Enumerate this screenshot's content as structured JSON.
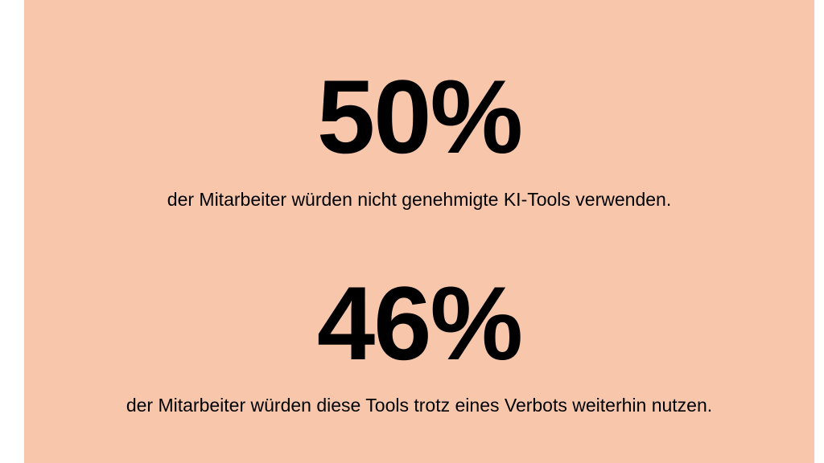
{
  "background_color": "#F7C6AB",
  "stats": [
    {
      "value": "50%",
      "description": "der Mitarbeiter würden nicht genehmigte KI-Tools verwenden."
    },
    {
      "value": "46%",
      "description": "der Mitarbeiter würden diese Tools trotz eines Verbots weiterhin nutzen."
    }
  ]
}
